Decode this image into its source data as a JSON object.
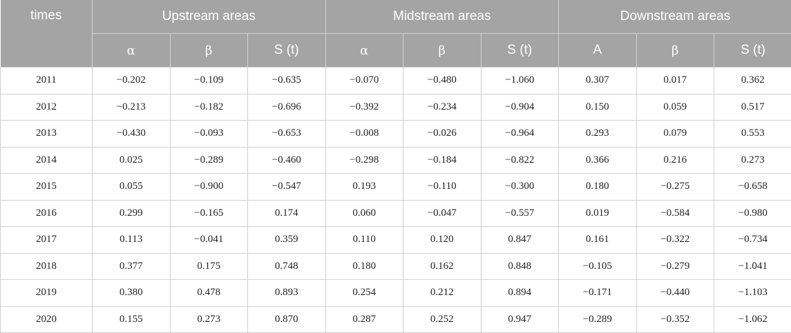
{
  "header": {
    "times": "times",
    "groups": [
      "Upstream areas",
      "Midstream areas",
      "Downstream areas"
    ],
    "subheaders": [
      "α",
      "β",
      "S (t)",
      "α",
      "β",
      "S (t)",
      "A",
      "β",
      "S (t)"
    ]
  },
  "rows": [
    {
      "year": "2011",
      "values": [
        "−0.202",
        "−0.109",
        "−0.635",
        "−0.070",
        "−0.480",
        "−1.060",
        "0.307",
        "0.017",
        "0.362"
      ]
    },
    {
      "year": "2012",
      "values": [
        "−0.213",
        "−0.182",
        "−0.696",
        "−0.392",
        "−0.234",
        "−0.904",
        "0.150",
        "0.059",
        "0.517"
      ]
    },
    {
      "year": "2013",
      "values": [
        "−0.430",
        "−0.093",
        "−0.653",
        "−0.008",
        "−0.026",
        "−0.964",
        "0.293",
        "0.079",
        "0.553"
      ]
    },
    {
      "year": "2014",
      "values": [
        "0.025",
        "−0.289",
        "−0.460",
        "−0.298",
        "−0.184",
        "−0.822",
        "0.366",
        "0.216",
        "0.273"
      ]
    },
    {
      "year": "2015",
      "values": [
        "0.055",
        "−0.900",
        "−0.547",
        "0.193",
        "−0.110",
        "−0.300",
        "0.180",
        "−0.275",
        "−0.658"
      ]
    },
    {
      "year": "2016",
      "values": [
        "0.299",
        "−0.165",
        "0.174",
        "0.060",
        "−0.047",
        "−0.557",
        "0.019",
        "−0.584",
        "−0.980"
      ]
    },
    {
      "year": "2017",
      "values": [
        "0.113",
        "−0.041",
        "0.359",
        "0.110",
        "0.120",
        "0.847",
        "0.161",
        "−0.322",
        "−0.734"
      ]
    },
    {
      "year": "2018",
      "values": [
        "0.377",
        "0.175",
        "0.748",
        "0.180",
        "0.162",
        "0.848",
        "−0.105",
        "−0.279",
        "−1.041"
      ]
    },
    {
      "year": "2019",
      "values": [
        "0.380",
        "0.478",
        "0.893",
        "0.254",
        "0.212",
        "0.894",
        "−0.171",
        "−0.440",
        "−1.103"
      ]
    },
    {
      "year": "2020",
      "values": [
        "0.155",
        "0.273",
        "0.870",
        "0.287",
        "0.252",
        "0.947",
        "−0.289",
        "−0.352",
        "−1.062"
      ]
    }
  ]
}
